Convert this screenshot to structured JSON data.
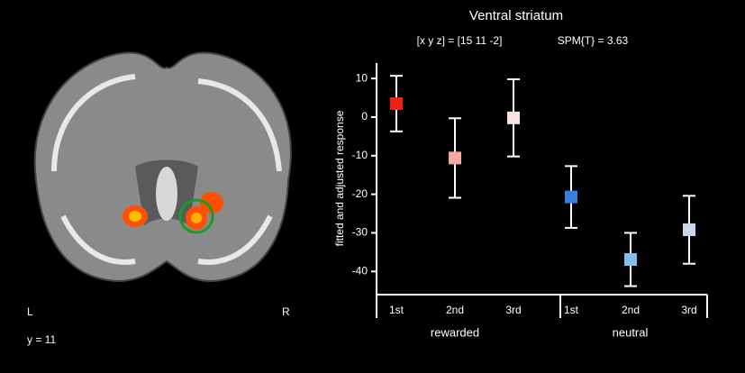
{
  "chart_data": {
    "type": "errorbar",
    "title": "Ventral striatum",
    "subtitle": [
      "[x y z] = [15 11 -2]",
      "SPM{T} = 3.63"
    ],
    "y_label": "fitted and adjusted response",
    "categories": [
      "1st",
      "2nd",
      "3rd",
      "1st",
      "2nd",
      "3rd"
    ],
    "groups": [
      "rewarded",
      "neutral"
    ],
    "values": [
      3.5,
      -10.6,
      -0.2,
      -20.7,
      -36.9,
      -29.2
    ],
    "errors": [
      7.2,
      10.3,
      10,
      8,
      6.9,
      8.8
    ],
    "colors": [
      "#f02010",
      "#f4a8a0",
      "#fbe4e0",
      "#3a7fe0",
      "#86bde8",
      "#c8d8ec"
    ],
    "ylim": [
      -46,
      14
    ],
    "yticks": [
      10,
      0,
      -10,
      -20,
      -30,
      -40
    ]
  },
  "image_labels": {
    "left": "L",
    "right": "R",
    "slice": "y = 11"
  }
}
